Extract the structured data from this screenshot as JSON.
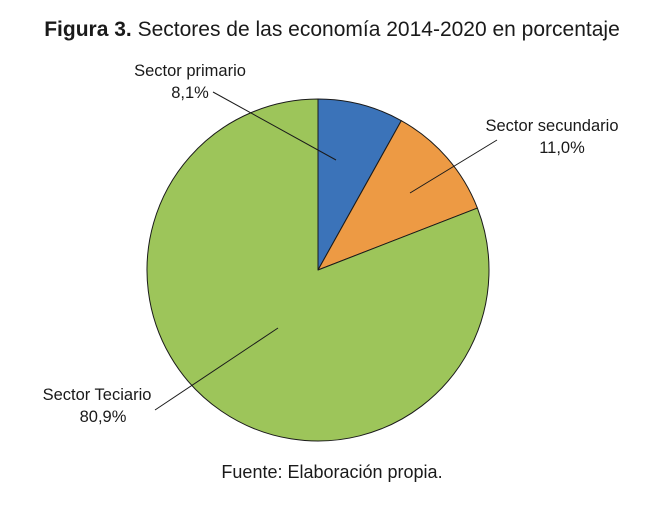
{
  "chart_data": {
    "type": "pie",
    "title_prefix": "Figura 3.",
    "title": "Sectores de las economía 2014-2020 en porcentaje",
    "source": "Fuente: Elaboración propia.",
    "slices": [
      {
        "label": "Sector primario",
        "value": 8.1,
        "value_label": "8,1%",
        "color": "#3b73b9"
      },
      {
        "label": "Sector secundario",
        "value": 11.0,
        "value_label": "11,0%",
        "color": "#ed9a44"
      },
      {
        "label": "Sector Teciario",
        "value": 80.9,
        "value_label": "80,9%",
        "color": "#9dc55a"
      }
    ],
    "start": "12 o'clock",
    "direction": "clockwise",
    "legend": "none"
  }
}
